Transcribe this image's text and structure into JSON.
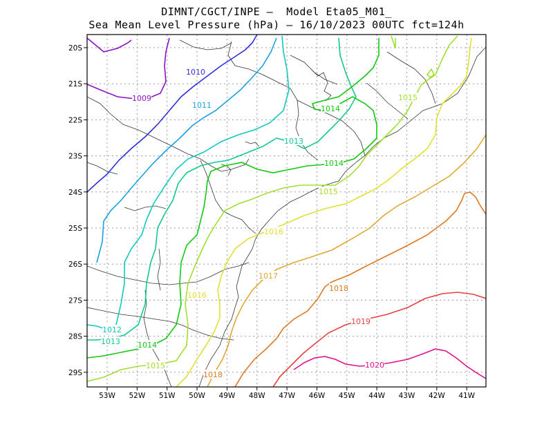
{
  "header": {
    "line1": "DIMNT/CGCT/INPE –  Model Eta05_M01_",
    "line2": "Sea Mean Level Pressure (hPa) – 16/10/2023 00UTC fct=124h"
  },
  "map_data": {
    "lon_labels": [
      "53W",
      "52W",
      "51W",
      "50W",
      "49W",
      "48W",
      "47W",
      "46W",
      "45W",
      "44W",
      "43W",
      "42W",
      "41W"
    ],
    "lat_labels": [
      "20S",
      "21S",
      "22S",
      "23S",
      "24S",
      "25S",
      "26S",
      "27S",
      "28S",
      "29S"
    ],
    "grid": true,
    "contour_unit": "hPa",
    "contours": [
      {
        "value": "1009",
        "color": "#8b10c8"
      },
      {
        "value": "1010",
        "color": "#2d2de0"
      },
      {
        "value": "1011",
        "color": "#1aa0e0"
      },
      {
        "value": "1012",
        "color": "#10c8c0"
      },
      {
        "value": "1013",
        "color": "#10c890"
      },
      {
        "value": "1014",
        "color": "#10c810"
      },
      {
        "value": "1015",
        "color": "#a0e030"
      },
      {
        "value": "1016",
        "color": "#e0e030"
      },
      {
        "value": "1017",
        "color": "#e0a830"
      },
      {
        "value": "1018",
        "color": "#e07820"
      },
      {
        "value": "1019",
        "color": "#e84040"
      },
      {
        "value": "1020",
        "color": "#e0108a"
      }
    ]
  }
}
